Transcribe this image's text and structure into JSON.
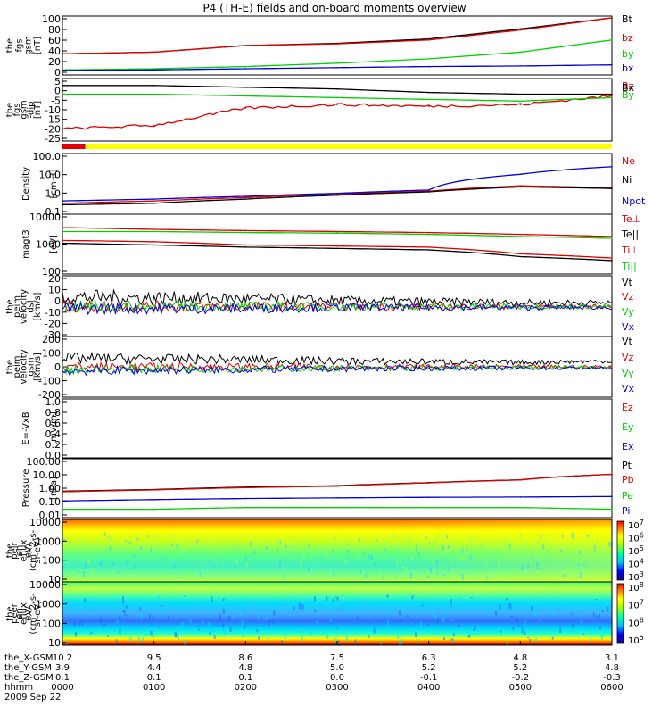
{
  "title": "P4 (TH-E) fields and on-board moments overview",
  "colors": {
    "black": "#000000",
    "red": "#e00000",
    "green": "#00d000",
    "blue": "#0000e0",
    "yellow": "#ffff00"
  },
  "panels": [
    {
      "id": "fgs-gsm",
      "ylabel": [
        "the",
        "fgs",
        "gsm",
        "[nT]"
      ],
      "ticks": [
        "100",
        "80",
        "60",
        "40",
        "20",
        "0"
      ],
      "legend": [
        {
          "name": "Bt",
          "color": "black"
        },
        {
          "name": "bz",
          "color": "red"
        },
        {
          "name": "by",
          "color": "green"
        },
        {
          "name": "bx",
          "color": "blue"
        }
      ]
    },
    {
      "id": "fgs-gsm-dip",
      "ylabel": [
        "the",
        "fgs",
        "gsm",
        "-dip",
        "[nT]"
      ],
      "ticks": [
        "5",
        "0",
        "-5",
        "-10",
        "-15",
        "-20",
        "-25"
      ],
      "legend": [
        {
          "name": "Bz",
          "color": "red"
        },
        {
          "name": "Bx",
          "color": "black"
        },
        {
          "name": "By",
          "color": "green"
        }
      ]
    },
    {
      "id": "density",
      "ylabel": [
        "Density",
        "[cm-3]"
      ],
      "ticks": [
        "100.0",
        "10.0",
        "1.0",
        "0.1"
      ],
      "legend": [
        {
          "name": "Ne",
          "color": "red"
        },
        {
          "name": "Ni",
          "color": "black"
        },
        {
          "name": "Npot",
          "color": "blue"
        }
      ]
    },
    {
      "id": "temperature",
      "ylabel": [
        "magt3",
        "[eV]"
      ],
      "ticks": [
        "10000",
        "1000",
        "100"
      ],
      "legend": [
        {
          "name": "Te⊥",
          "color": "red"
        },
        {
          "name": "Te||",
          "color": "black"
        },
        {
          "name": "Ti⊥",
          "color": "red"
        },
        {
          "name": "Ti||",
          "color": "green"
        }
      ]
    },
    {
      "id": "peim-velocity-dsl",
      "ylabel": [
        "the",
        "peim",
        "velocity",
        "dsl",
        "[km/s]"
      ],
      "ticks": [
        "20",
        "10",
        "0",
        "-10",
        "-20",
        "-30"
      ],
      "legend": [
        {
          "name": "Vt",
          "color": "black"
        },
        {
          "name": "Vz",
          "color": "red"
        },
        {
          "name": "Vy",
          "color": "green"
        },
        {
          "name": "Vx",
          "color": "blue"
        }
      ]
    },
    {
      "id": "peim-velocity-gsm",
      "ylabel": [
        "the",
        "peim",
        "velocity",
        "gsm",
        "[km/s]"
      ],
      "ticks": [
        "200",
        "100",
        "0",
        "-100",
        "-200"
      ],
      "legend": [
        {
          "name": "Vt",
          "color": "black"
        },
        {
          "name": "Vz",
          "color": "red"
        },
        {
          "name": "Vy",
          "color": "green"
        },
        {
          "name": "Vx",
          "color": "blue"
        }
      ]
    },
    {
      "id": "efield",
      "ylabel": [
        "E=-VxB",
        "[mV/m]"
      ],
      "ticks": [
        "1.0",
        "0.8",
        "0.6",
        "0.4",
        "0.2",
        "0.0"
      ],
      "legend": [
        {
          "name": "Ez",
          "color": "red"
        },
        {
          "name": "Ey",
          "color": "green"
        },
        {
          "name": "Ex",
          "color": "blue"
        }
      ]
    },
    {
      "id": "pressure",
      "ylabel": [
        "Pressure",
        "[nPa]"
      ],
      "ticks": [
        "100.00",
        "10.00",
        "1.00",
        "0.10",
        "0.01"
      ],
      "legend": [
        {
          "name": "Pt",
          "color": "black"
        },
        {
          "name": "Pb",
          "color": "red"
        },
        {
          "name": "Pe",
          "color": "green"
        },
        {
          "name": "Pi",
          "color": "blue"
        }
      ]
    },
    {
      "id": "peir-eflux",
      "ylabel": [
        "the",
        "peir",
        "en",
        "eflux",
        "eV/",
        "(cm^2-s-",
        "sr-eV)"
      ],
      "ticks": [
        "10000",
        "1000",
        "100",
        "10"
      ],
      "colorbar": [
        "10^7",
        "10^6",
        "10^5",
        "10^4",
        "10^3"
      ]
    },
    {
      "id": "peer-eflux",
      "ylabel": [
        "the",
        "peer",
        "en",
        "eflux",
        "eV/",
        "(cm^2-s-",
        "sr-eV)"
      ],
      "ticks": [
        "10000",
        "1000",
        "100",
        "10"
      ],
      "colorbar": [
        "10^8",
        "10^7",
        "10^6",
        "10^5"
      ]
    }
  ],
  "status_bar": {
    "segments": [
      {
        "color": "red",
        "start": "0000",
        "end": "0015"
      },
      {
        "color": "yellow",
        "start": "0015",
        "end": "0600"
      }
    ]
  },
  "xaxis": {
    "rows": [
      {
        "label": "the_X-GSM",
        "values": [
          "10.2",
          "9.5",
          "8.6",
          "7.5",
          "6.3",
          "4.8",
          "3.1"
        ]
      },
      {
        "label": "the_Y-GSM",
        "values": [
          "3.9",
          "4.4",
          "4.8",
          "5.0",
          "5.2",
          "5.2",
          "4.8"
        ]
      },
      {
        "label": "the_Z-GSM",
        "values": [
          "0.1",
          "0.1",
          "0.1",
          "0.0",
          "-0.1",
          "-0.2",
          "-0.3"
        ]
      },
      {
        "label": "hhmm",
        "values": [
          "0000",
          "0100",
          "0200",
          "0300",
          "0400",
          "0500",
          "0600"
        ]
      }
    ],
    "date": "2009 Sep 22"
  },
  "chart_data": [
    {
      "type": "line",
      "title": "P4 (TH-E) fields and on-board moments overview",
      "ylabel": "the fgs gsm [nT]",
      "ylim": [
        0,
        100
      ],
      "x": [
        "0000",
        "0100",
        "0200",
        "0300",
        "0400",
        "0500",
        "0600"
      ],
      "series": [
        {
          "name": "Bt",
          "values": [
            35,
            38,
            50,
            54,
            62,
            80,
            100
          ]
        },
        {
          "name": "bz",
          "values": [
            35,
            38,
            50,
            53,
            60,
            78,
            100
          ]
        },
        {
          "name": "by",
          "values": [
            6,
            8,
            12,
            18,
            26,
            38,
            60
          ]
        },
        {
          "name": "bx",
          "values": [
            5,
            6,
            8,
            10,
            12,
            13,
            15
          ]
        }
      ]
    },
    {
      "type": "line",
      "ylabel": "the fgs gsm-dip [nT]",
      "ylim": [
        -28,
        6
      ],
      "x": [
        "0000",
        "0100",
        "0200",
        "0300",
        "0400",
        "0500",
        "0600"
      ],
      "series": [
        {
          "name": "Bz",
          "values": [
            -22,
            -20,
            -10,
            -8,
            -9,
            -8,
            -3
          ]
        },
        {
          "name": "Bx",
          "values": [
            3,
            3,
            2,
            1,
            -1,
            -2,
            -2
          ]
        },
        {
          "name": "By",
          "values": [
            -2,
            -2,
            -3,
            -4,
            -5,
            -6,
            -4
          ]
        }
      ]
    },
    {
      "type": "line",
      "ylabel": "Density [cm-3]",
      "ylim": [
        0.1,
        100
      ],
      "yscale": "log",
      "x": [
        "0000",
        "0100",
        "0200",
        "0300",
        "0400",
        "0500",
        "0600"
      ],
      "series": [
        {
          "name": "Ne",
          "values": [
            0.3,
            0.4,
            0.6,
            0.9,
            1.3,
            2.5,
            2.0
          ]
        },
        {
          "name": "Ni",
          "values": [
            0.25,
            0.3,
            0.5,
            0.8,
            1.2,
            2.2,
            1.8
          ]
        },
        {
          "name": "Npot",
          "values": [
            0.4,
            0.5,
            0.7,
            1.0,
            1.5,
            10,
            25
          ]
        }
      ]
    },
    {
      "type": "line",
      "ylabel": "magt3 [eV]",
      "ylim": [
        30,
        10000
      ],
      "yscale": "log",
      "x": [
        "0000",
        "0100",
        "0200",
        "0300",
        "0400",
        "0500",
        "0600"
      ],
      "series": [
        {
          "name": "Te⊥",
          "values": [
            800,
            700,
            500,
            450,
            400,
            200,
            130
          ]
        },
        {
          "name": "Te||",
          "values": [
            600,
            500,
            400,
            350,
            300,
            150,
            100
          ]
        },
        {
          "name": "Ti⊥",
          "values": [
            3000,
            2500,
            2200,
            2000,
            1800,
            1500,
            1200
          ]
        },
        {
          "name": "Ti||",
          "values": [
            2000,
            2000,
            1800,
            1700,
            1500,
            1200,
            1000
          ]
        }
      ]
    },
    {
      "type": "line",
      "ylabel": "the peim velocity dsl [km/s]",
      "ylim": [
        -30,
        30
      ],
      "x": [
        "0000",
        "0100",
        "0200",
        "0300",
        "0400",
        "0500",
        "0600"
      ],
      "series": [
        {
          "name": "Vt",
          "values": [
            10,
            9,
            8,
            6,
            5,
            4,
            4
          ]
        },
        {
          "name": "Vz",
          "values": [
            0,
            0,
            0,
            0,
            0,
            0,
            0
          ]
        },
        {
          "name": "Vy",
          "values": [
            0,
            0,
            0,
            0,
            0,
            0,
            0
          ]
        },
        {
          "name": "Vx",
          "values": [
            -2,
            -2,
            -2,
            -1,
            -1,
            -1,
            -1
          ]
        }
      ]
    },
    {
      "type": "line",
      "ylabel": "the peim velocity gsm [km/s]",
      "ylim": [
        -200,
        200
      ],
      "x": [
        "0000",
        "0100",
        "0200",
        "0300",
        "0400",
        "0500",
        "0600"
      ],
      "series": [
        {
          "name": "Vt",
          "values": [
            60,
            55,
            50,
            40,
            35,
            30,
            40
          ]
        },
        {
          "name": "Vz",
          "values": [
            0,
            0,
            0,
            0,
            0,
            0,
            0
          ]
        },
        {
          "name": "Vy",
          "values": [
            -20,
            -15,
            -15,
            -10,
            -10,
            -5,
            -5
          ]
        },
        {
          "name": "Vx",
          "values": [
            -30,
            -25,
            -20,
            -15,
            -10,
            -10,
            -10
          ]
        }
      ]
    },
    {
      "type": "line",
      "ylabel": "E=-VxB [mV/m]",
      "ylim": [
        0,
        1
      ],
      "series": []
    },
    {
      "type": "line",
      "ylabel": "Pressure [nPa]",
      "ylim": [
        0.01,
        100
      ],
      "yscale": "log",
      "x": [
        "0000",
        "0100",
        "0200",
        "0300",
        "0400",
        "0500",
        "0600"
      ],
      "series": [
        {
          "name": "Pt",
          "values": [
            0.6,
            0.8,
            1.2,
            1.5,
            2.5,
            4,
            10
          ]
        },
        {
          "name": "Pb",
          "values": [
            0.55,
            0.75,
            1.1,
            1.4,
            2.4,
            3.9,
            10
          ]
        },
        {
          "name": "Pe",
          "values": [
            0.03,
            0.03,
            0.04,
            0.04,
            0.04,
            0.04,
            0.03
          ]
        },
        {
          "name": "Pi",
          "values": [
            0.12,
            0.15,
            0.18,
            0.2,
            0.22,
            0.23,
            0.25
          ]
        }
      ]
    },
    {
      "type": "heatmap",
      "ylabel": "the peir en eflux eV/(cm^2-s-sr-eV)",
      "ylim": [
        5,
        30000
      ],
      "yscale": "log",
      "zlim": [
        1000,
        10000000
      ],
      "zscale": "log"
    },
    {
      "type": "heatmap",
      "ylabel": "the peer en eflux eV/(cm^2-s-sr-eV)",
      "ylim": [
        7,
        30000
      ],
      "yscale": "log",
      "zlim": [
        100000,
        100000000
      ],
      "zscale": "log"
    }
  ]
}
